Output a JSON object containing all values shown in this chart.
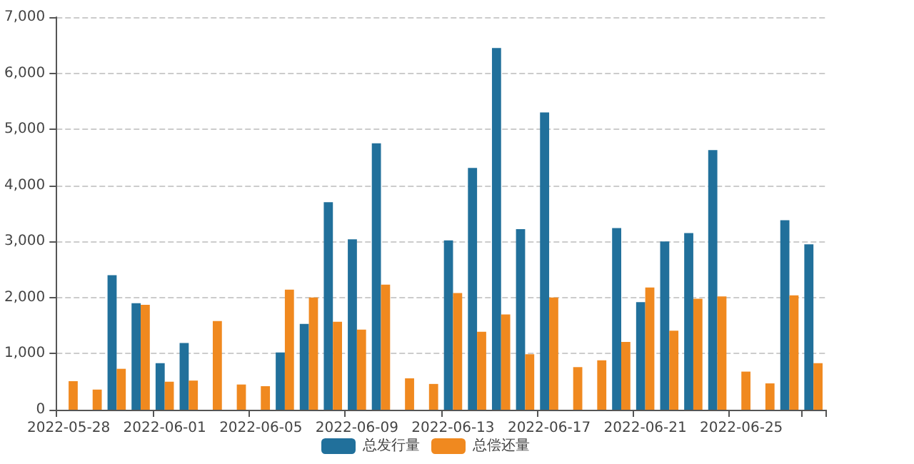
{
  "chart_data": {
    "type": "bar",
    "categories": [
      "2022-05-28",
      null,
      null,
      null,
      "2022-06-01",
      null,
      null,
      null,
      "2022-06-05",
      null,
      null,
      null,
      "2022-06-09",
      null,
      null,
      null,
      "2022-06-13",
      null,
      null,
      null,
      "2022-06-17",
      null,
      null,
      null,
      "2022-06-21",
      null,
      null,
      null,
      "2022-06-25",
      null,
      null,
      null
    ],
    "series": [
      {
        "name": "总发行量",
        "color": "#21709b",
        "values": [
          null,
          null,
          2400,
          1900,
          830,
          1190,
          null,
          null,
          null,
          1020,
          1530,
          3700,
          3040,
          4750,
          null,
          null,
          3020,
          4310,
          6450,
          3220,
          5300,
          null,
          null,
          3240,
          1920,
          3000,
          3150,
          4630,
          null,
          null,
          3380,
          2950
        ]
      },
      {
        "name": "总偿还量",
        "color": "#f0891f",
        "values": [
          510,
          360,
          730,
          1870,
          500,
          520,
          1580,
          450,
          420,
          2140,
          2000,
          1570,
          1430,
          2230,
          560,
          460,
          2080,
          1390,
          1700,
          990,
          2000,
          760,
          880,
          1210,
          2180,
          1410,
          1980,
          2020,
          680,
          470,
          2040,
          830
        ]
      }
    ],
    "ylim": [
      0,
      7000
    ],
    "yticks": [
      0,
      {
        "value": 1000,
        "label": "1,000"
      },
      {
        "value": 2000,
        "label": "2,000"
      },
      {
        "value": 3000,
        "label": "3,000"
      },
      {
        "value": 4000,
        "label": "4,000"
      },
      {
        "value": 5000,
        "label": "5,000"
      },
      {
        "value": 6000,
        "label": "6,000"
      },
      {
        "value": 7000,
        "label": "7,000"
      }
    ],
    "grid": "y",
    "legend": "bottom"
  }
}
